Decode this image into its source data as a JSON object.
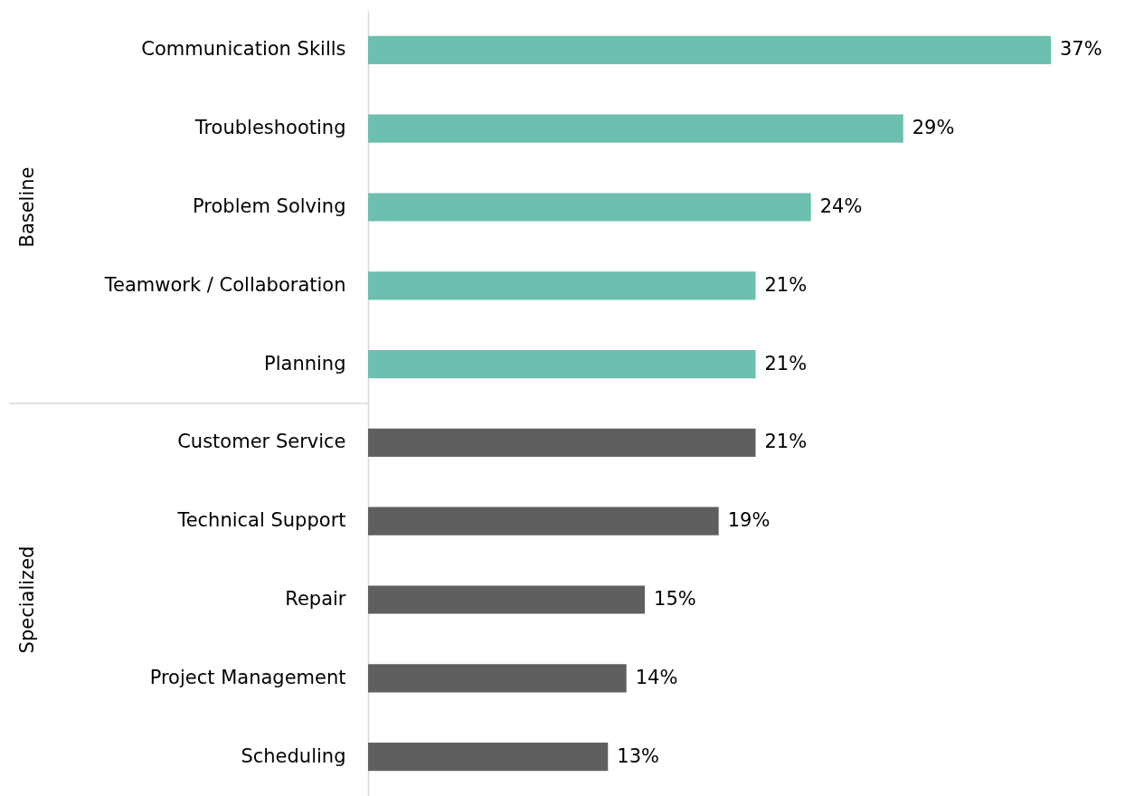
{
  "chart_data": {
    "type": "bar",
    "orientation": "horizontal",
    "categories": [
      "Communication Skills",
      "Troubleshooting",
      "Problem Solving",
      "Teamwork / Collaboration",
      "Planning",
      "Customer Service",
      "Technical Support",
      "Repair",
      "Project Management",
      "Scheduling"
    ],
    "values": [
      37,
      29,
      24,
      21,
      21,
      21,
      19,
      15,
      14,
      13
    ],
    "value_labels": [
      "37%",
      "29%",
      "24%",
      "21%",
      "21%",
      "21%",
      "19%",
      "15%",
      "14%",
      "13%"
    ],
    "colors": [
      "#6dbfb0",
      "#6dbfb0",
      "#6dbfb0",
      "#6dbfb0",
      "#6dbfb0",
      "#5f5f5f",
      "#5f5f5f",
      "#5f5f5f",
      "#5f5f5f",
      "#5f5f5f"
    ],
    "annotations": [
      "Baseline",
      "Specialized"
    ],
    "grid": false
  }
}
